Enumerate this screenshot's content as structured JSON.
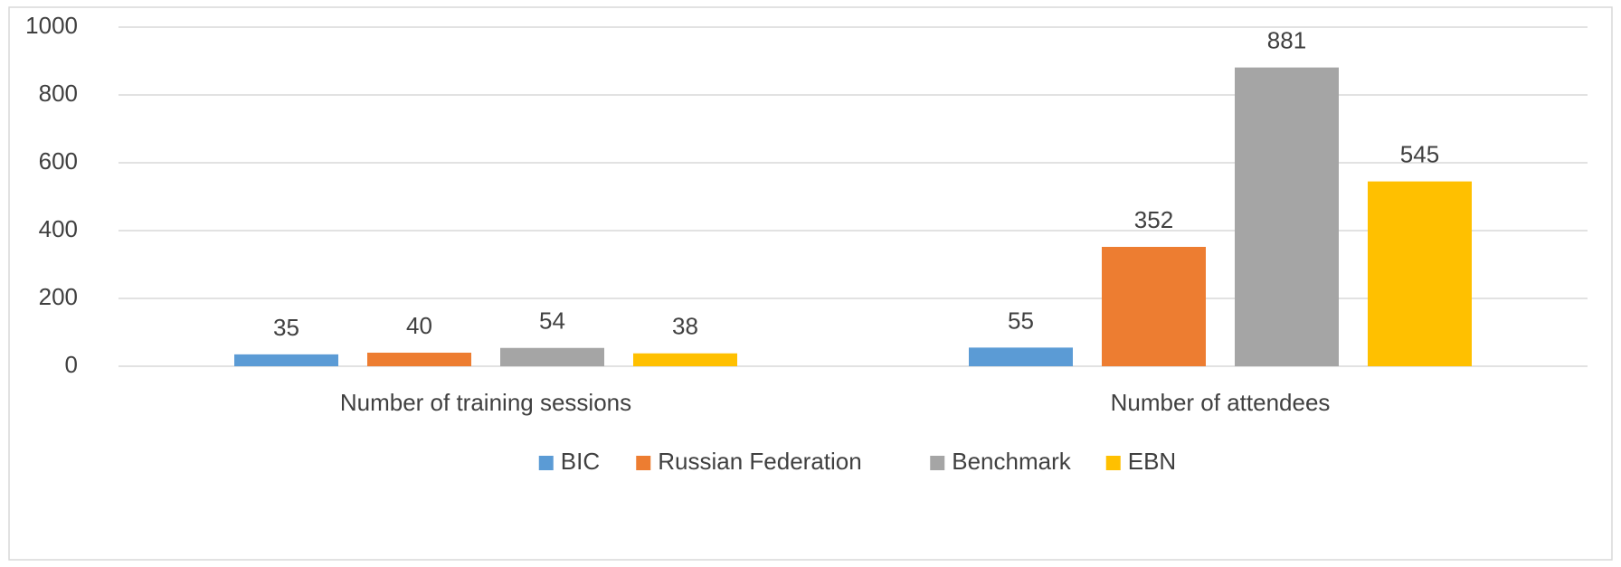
{
  "chart_data": {
    "type": "bar",
    "categories": [
      "Number of training sessions",
      "Number of attendees"
    ],
    "series": [
      {
        "name": "BIC",
        "color": "#5b9bd5",
        "values": [
          35,
          55
        ]
      },
      {
        "name": "Russian Federation",
        "color": "#ed7d31",
        "values": [
          40,
          352
        ]
      },
      {
        "name": "Benchmark",
        "color": "#a5a5a5",
        "values": [
          54,
          881
        ]
      },
      {
        "name": "EBN",
        "color": "#ffc000",
        "values": [
          38,
          545
        ]
      }
    ],
    "ylim": [
      0,
      1000
    ],
    "yticks": [
      0,
      200,
      400,
      600,
      800,
      1000
    ],
    "grid": true,
    "legend": "bottom"
  }
}
